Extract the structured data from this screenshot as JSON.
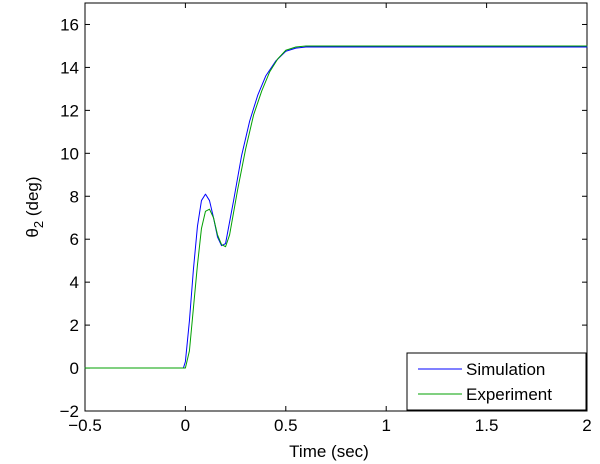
{
  "chart_data": {
    "type": "line",
    "title": "",
    "xlabel": "Time (sec)",
    "ylabel": "θ2 (deg)",
    "ylabel_main": "θ",
    "ylabel_sub": "2",
    "ylabel_tail": " (deg)",
    "xlim": [
      -0.5,
      2
    ],
    "ylim": [
      -2,
      17
    ],
    "xticks": [
      -0.5,
      0,
      0.5,
      1,
      1.5,
      2
    ],
    "xtick_labels": [
      "−0.5",
      "0",
      "0.5",
      "1",
      "1.5",
      "2"
    ],
    "yticks": [
      -2,
      0,
      2,
      4,
      6,
      8,
      10,
      12,
      14,
      16
    ],
    "ytick_labels": [
      "−2",
      "0",
      "2",
      "4",
      "6",
      "8",
      "10",
      "12",
      "14",
      "16"
    ],
    "grid": false,
    "legend_position": "bottom-right",
    "series": [
      {
        "name": "Simulation",
        "color": "#0000ff",
        "x": [
          -0.5,
          -0.01,
          0.0,
          0.02,
          0.04,
          0.06,
          0.08,
          0.1,
          0.12,
          0.14,
          0.16,
          0.18,
          0.2,
          0.24,
          0.28,
          0.32,
          0.36,
          0.4,
          0.45,
          0.5,
          0.55,
          0.6,
          0.65,
          0.7,
          1.0,
          1.5,
          2.0
        ],
        "y": [
          0,
          0,
          0.3,
          2.2,
          4.6,
          6.6,
          7.8,
          8.1,
          7.8,
          7.0,
          6.1,
          5.7,
          5.8,
          7.8,
          9.9,
          11.5,
          12.7,
          13.6,
          14.3,
          14.75,
          14.9,
          14.95,
          14.95,
          14.95,
          14.95,
          14.95,
          14.95
        ]
      },
      {
        "name": "Experiment",
        "color": "#00a000",
        "x": [
          -0.5,
          0.0,
          0.02,
          0.04,
          0.06,
          0.08,
          0.1,
          0.12,
          0.14,
          0.16,
          0.18,
          0.2,
          0.22,
          0.26,
          0.3,
          0.34,
          0.38,
          0.42,
          0.46,
          0.5,
          0.55,
          0.6,
          0.65,
          0.7,
          1.0,
          1.5,
          2.0
        ],
        "y": [
          0,
          0,
          0.8,
          2.8,
          4.8,
          6.5,
          7.3,
          7.4,
          7.0,
          6.2,
          5.75,
          5.65,
          6.2,
          8.3,
          10.2,
          11.8,
          12.9,
          13.8,
          14.4,
          14.8,
          14.95,
          15.0,
          15.0,
          15.0,
          15.0,
          15.0,
          15.0
        ]
      }
    ]
  }
}
